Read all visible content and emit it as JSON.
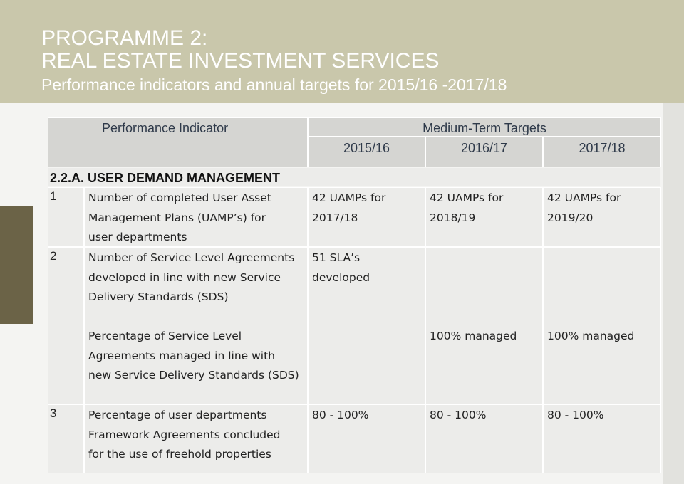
{
  "header": {
    "title": [
      "PROGRAMME 2:",
      "REAL ESTATE INVESTMENT SERVICES"
    ],
    "subtitle": "Performance indicators and annual targets for 2015/16 -2017/18"
  },
  "table": {
    "indicator_heading": "Performance Indicator",
    "targets_heading": "Medium-Term Targets",
    "years": [
      "2015/16",
      "2016/17",
      "2017/18"
    ],
    "section": "2.2.A. USER DEMAND MANAGEMENT",
    "rows": [
      {
        "number": "1",
        "indicator": [
          "Number of completed User Asset",
          "Management Plans (UAMP’s) for",
          "user departments"
        ],
        "targets": [
          [
            "42 UAMPs for",
            "2017/18"
          ],
          [
            "42 UAMPs for",
            "2018/19"
          ],
          [
            "42 UAMPs for",
            "2019/20"
          ]
        ]
      },
      {
        "number": "2",
        "indicator": [
          "Number of Service Level Agreements",
          "developed in line with new Service",
          "Delivery Standards (SDS)"
        ],
        "targets": [
          [
            "51 SLA’s",
            "developed"
          ],
          null,
          null
        ]
      },
      {
        "indicator": [
          "Percentage of Service Level",
          "Agreements managed in line with",
          "new Service Delivery Standards (SDS)"
        ],
        "targets": [
          null,
          [
            "100% managed"
          ],
          [
            "100% managed"
          ]
        ]
      },
      {
        "number": "3",
        "indicator": [
          "Percentage of user departments",
          "Framework Agreements concluded",
          "for the use of freehold properties"
        ],
        "targets": [
          [
            "80 - 100%"
          ],
          [
            "80 - 100%"
          ],
          [
            "80 - 100%"
          ]
        ]
      }
    ]
  }
}
